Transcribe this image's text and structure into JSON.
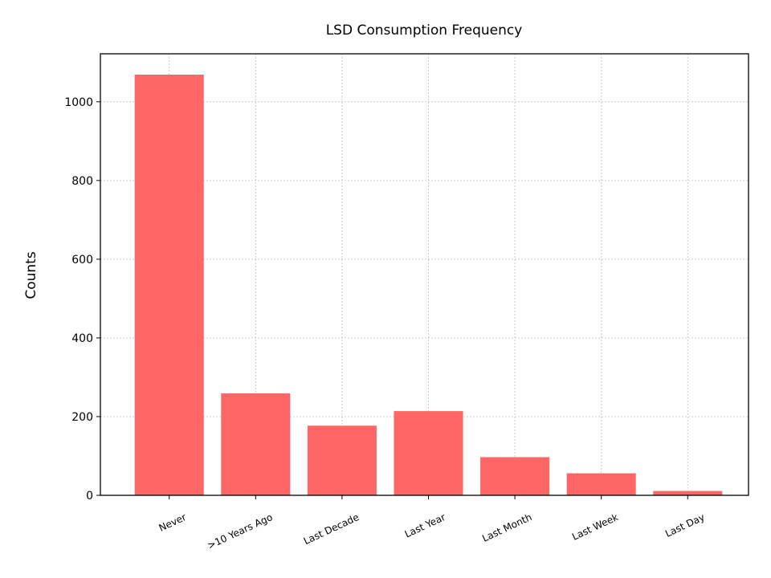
{
  "chart_data": {
    "type": "bar",
    "title": "LSD Consumption Frequency",
    "xlabel": "",
    "ylabel": "Counts",
    "categories": [
      "Never",
      ">10 Years Ago",
      "Last Decade",
      "Last Year",
      "Last Month",
      "Last Week",
      "Last Day"
    ],
    "values": [
      1069,
      259,
      177,
      214,
      97,
      56,
      11
    ],
    "ylim": [
      0,
      1122
    ],
    "yticks": [
      0,
      200,
      400,
      600,
      800,
      1000
    ],
    "grid": true,
    "bar_color": "#ff6666",
    "xtick_rotation": 25
  }
}
